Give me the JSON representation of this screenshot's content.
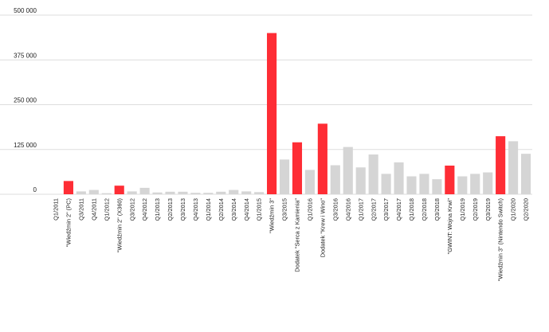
{
  "chart_data": {
    "type": "bar",
    "title": "",
    "xlabel": "",
    "ylabel": "",
    "ylim": [
      0,
      500000
    ],
    "yticks": [
      0,
      125000,
      250000,
      375000,
      500000
    ],
    "ytick_labels": [
      "0",
      "125 000",
      "250 000",
      "375 000",
      "500 000"
    ],
    "grid": true,
    "colors": {
      "highlight": "#fe2d35",
      "normal": "#d5d5d5",
      "grid": "#dddddd"
    },
    "categories": [
      "Q1/2011",
      "\"Wiedźmin 2\" (PC)",
      "Q3/2011",
      "Q4/2011",
      "Q1/2012",
      "\"Wiedźmin 2\" (X360)",
      "Q3/2012",
      "Q4/2012",
      "Q1/2013",
      "Q2/2013",
      "Q3/2013",
      "Q4/2013",
      "Q1/2014",
      "Q2/2014",
      "Q3/2014",
      "Q4/2014",
      "Q1/2015",
      "\"Wiedźmin 3\"",
      "Q3/2015",
      "Dodatek \"Serca z Kamienia\"",
      "Q1/2016",
      "Dodatek \"Krew i Wino\"",
      "Q3/2016",
      "Q4/2016",
      "Q1/2017",
      "Q2/2017",
      "Q3/2017",
      "Q4/2017",
      "Q1/2018",
      "Q2/2018",
      "Q3/2018",
      "\"GWINT: Wojna Krwi\"",
      "Q1/2019",
      "Q2/2019",
      "Q3/2019",
      "\"Wiedźmin 3\" (Nintendo Switch)",
      "Q1/2020",
      "Q2/2020"
    ],
    "values": [
      0,
      37000,
      8000,
      12000,
      3000,
      24000,
      8000,
      18000,
      5000,
      7000,
      7000,
      4000,
      4000,
      7000,
      12000,
      8000,
      6000,
      450000,
      97000,
      145000,
      68000,
      197000,
      81000,
      132000,
      75000,
      111000,
      57000,
      89000,
      50000,
      57000,
      42000,
      80000,
      50000,
      57000,
      61000,
      162000,
      148000,
      113000
    ],
    "highlighted": [
      false,
      true,
      false,
      false,
      false,
      true,
      false,
      false,
      false,
      false,
      false,
      false,
      false,
      false,
      false,
      false,
      false,
      true,
      false,
      true,
      false,
      true,
      false,
      false,
      false,
      false,
      false,
      false,
      false,
      false,
      false,
      true,
      false,
      false,
      false,
      true,
      false,
      false
    ]
  }
}
